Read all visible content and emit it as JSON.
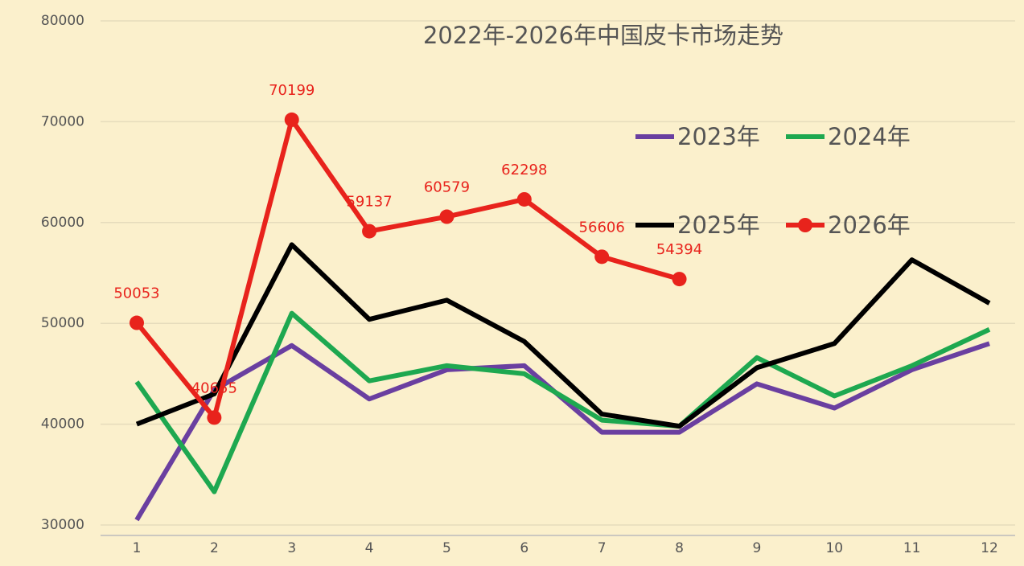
{
  "chart_data": {
    "type": "line",
    "title": "2022年-2026年中国皮卡市场走势",
    "categories": [
      "1",
      "2",
      "3",
      "4",
      "5",
      "6",
      "7",
      "8",
      "9",
      "10",
      "11",
      "12"
    ],
    "ylim": [
      30000,
      80000
    ],
    "yticks": [
      30000,
      40000,
      50000,
      60000,
      70000,
      80000
    ],
    "grid": true,
    "legend": "upper right",
    "series": [
      {
        "name": "2023年",
        "color": "#6a3fa0",
        "values": [
          30500,
          43400,
          47800,
          42500,
          45400,
          45800,
          39200,
          39200,
          44000,
          41600,
          45400,
          48000
        ]
      },
      {
        "name": "2024年",
        "color": "#1ea850",
        "values": [
          44200,
          33300,
          51000,
          44300,
          45800,
          45000,
          40400,
          39800,
          46600,
          42800,
          45800,
          49400
        ]
      },
      {
        "name": "2025年",
        "color": "#000000",
        "values": [
          40000,
          43000,
          57800,
          50400,
          52300,
          48200,
          41000,
          39800,
          45600,
          48000,
          56300,
          52000
        ]
      },
      {
        "name": "2026年",
        "color": "#e8231c",
        "marker": "circle",
        "show_labels": true,
        "values": [
          50053,
          40655,
          70199,
          59137,
          60579,
          62298,
          56606,
          54394,
          null,
          null,
          null,
          null
        ]
      }
    ]
  }
}
